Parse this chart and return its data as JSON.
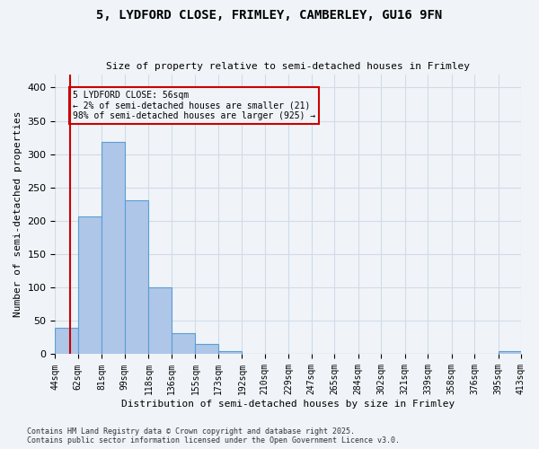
{
  "title": "5, LYDFORD CLOSE, FRIMLEY, CAMBERLEY, GU16 9FN",
  "subtitle": "Size of property relative to semi-detached houses in Frimley",
  "xlabel": "Distribution of semi-detached houses by size in Frimley",
  "ylabel": "Number of semi-detached properties",
  "footnote1": "Contains HM Land Registry data © Crown copyright and database right 2025.",
  "footnote2": "Contains public sector information licensed under the Open Government Licence v3.0.",
  "bin_labels": [
    "44sqm",
    "62sqm",
    "81sqm",
    "99sqm",
    "118sqm",
    "136sqm",
    "155sqm",
    "173sqm",
    "192sqm",
    "210sqm",
    "229sqm",
    "247sqm",
    "265sqm",
    "284sqm",
    "302sqm",
    "321sqm",
    "339sqm",
    "358sqm",
    "376sqm",
    "395sqm",
    "413sqm"
  ],
  "bin_edges": [
    44,
    62,
    81,
    99,
    118,
    136,
    155,
    173,
    192,
    210,
    229,
    247,
    265,
    284,
    302,
    321,
    339,
    358,
    376,
    395,
    413
  ],
  "bar_heights": [
    40,
    207,
    318,
    231,
    100,
    32,
    15,
    5,
    0,
    0,
    0,
    0,
    0,
    0,
    0,
    0,
    0,
    0,
    0,
    5,
    0
  ],
  "bar_color": "#aec6e8",
  "bar_edge_color": "#5a9fd4",
  "property_size": 56,
  "annotation_title": "5 LYDFORD CLOSE: 56sqm",
  "annotation_line1": "← 2% of semi-detached houses are smaller (21)",
  "annotation_line2": "98% of semi-detached houses are larger (925) →",
  "vline_color": "#cc0000",
  "annotation_box_color": "#cc0000",
  "ylim": [
    0,
    420
  ],
  "grid_color": "#d0dce8",
  "background_color": "#f0f4f8"
}
